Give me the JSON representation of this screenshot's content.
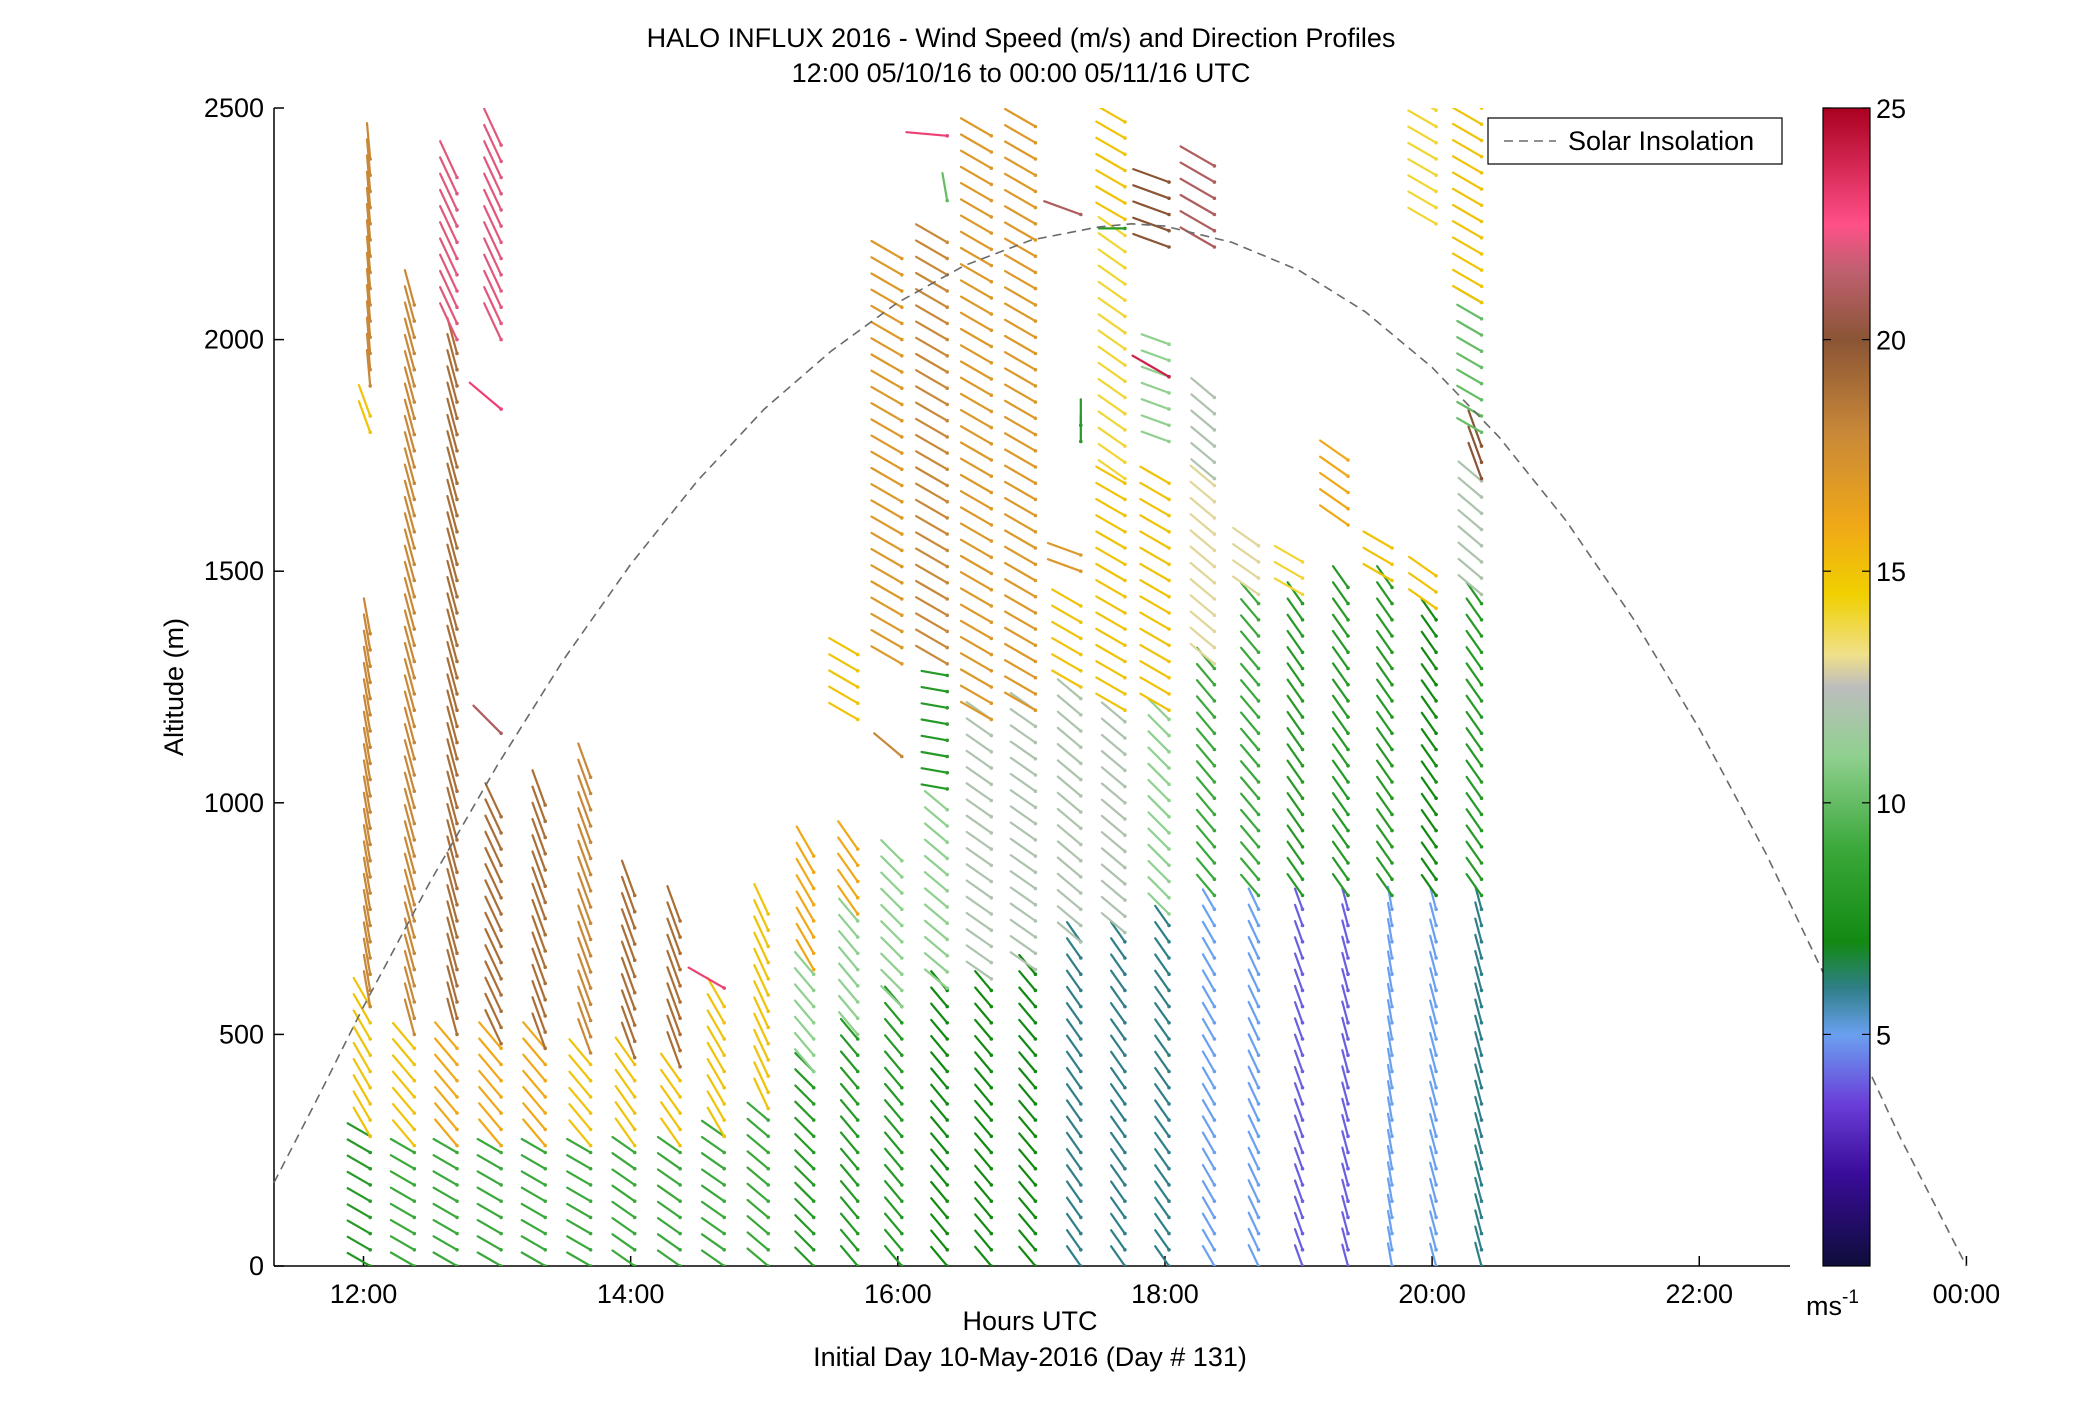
{
  "chart_data": {
    "type": "wind_barb_profile",
    "title": "HALO INFLUX 2016 - Wind Speed (m/s) and Direction Profiles",
    "subtitle": "12:00 05/10/16 to 00:00 05/11/16  UTC",
    "xlabel": "Hours UTC",
    "xlabel2": "Initial Day 10-May-2016 (Day # 131)",
    "ylabel": "Altitude (m)",
    "x_ticks": [
      "12:00",
      "14:00",
      "16:00",
      "18:00",
      "20:00",
      "22:00",
      "00:00"
    ],
    "x_tick_hours": [
      12,
      14,
      16,
      18,
      20,
      22,
      24
    ],
    "xlim_hours": [
      11.33,
      25.0
    ],
    "y_ticks": [
      0,
      500,
      1000,
      1500,
      2000,
      2500
    ],
    "ylim": [
      0,
      2500
    ],
    "legend": {
      "label": "Solar Insolation",
      "placement": "top-right"
    },
    "colorbar": {
      "ticks": [
        5,
        10,
        15,
        20,
        25
      ],
      "range": [
        0,
        25
      ],
      "unit_label": "ms",
      "unit_exponent": "-1"
    },
    "solar_insolation": {
      "style": "dashed",
      "color": "#6a6a6a",
      "points": [
        [
          11.33,
          180
        ],
        [
          11.67,
          370
        ],
        [
          12.0,
          560
        ],
        [
          12.5,
          830
        ],
        [
          13.0,
          1080
        ],
        [
          13.5,
          1310
        ],
        [
          14.0,
          1515
        ],
        [
          14.5,
          1695
        ],
        [
          15.0,
          1850
        ],
        [
          15.5,
          1975
        ],
        [
          16.0,
          2080
        ],
        [
          16.5,
          2160
        ],
        [
          17.0,
          2215
        ],
        [
          17.5,
          2243
        ],
        [
          17.75,
          2250
        ],
        [
          18.0,
          2245
        ],
        [
          18.5,
          2210
        ],
        [
          19.0,
          2150
        ],
        [
          19.5,
          2060
        ],
        [
          20.0,
          1940
        ],
        [
          20.5,
          1790
        ],
        [
          21.0,
          1610
        ],
        [
          21.5,
          1400
        ],
        [
          22.0,
          1160
        ],
        [
          22.5,
          890
        ],
        [
          23.0,
          590
        ],
        [
          23.5,
          280
        ],
        [
          24.0,
          0
        ]
      ]
    },
    "profiles": [
      {
        "time": 12.05,
        "segments": [
          {
            "from": 0,
            "to": 280,
            "speed": 8,
            "dir": 300
          },
          {
            "from": 280,
            "to": 560,
            "speed": 15,
            "dir": 330
          },
          {
            "from": 560,
            "to": 1380,
            "speed": 18,
            "dir": 350
          },
          {
            "from": 1800,
            "to": 1850,
            "speed": 15,
            "dir": 340
          },
          {
            "from": 1900,
            "to": 2420,
            "speed": 18,
            "dir": 355
          }
        ]
      },
      {
        "time": 12.38,
        "segments": [
          {
            "from": 0,
            "to": 260,
            "speed": 9,
            "dir": 300
          },
          {
            "from": 260,
            "to": 500,
            "speed": 15,
            "dir": 320
          },
          {
            "from": 500,
            "to": 2080,
            "speed": 18,
            "dir": 345
          }
        ]
      },
      {
        "time": 12.7,
        "segments": [
          {
            "from": 0,
            "to": 260,
            "speed": 9,
            "dir": 300
          },
          {
            "from": 260,
            "to": 500,
            "speed": 16,
            "dir": 320
          },
          {
            "from": 500,
            "to": 2000,
            "speed": 19,
            "dir": 345
          },
          {
            "from": 2000,
            "to": 2370,
            "speed": 22,
            "dir": 335
          }
        ]
      },
      {
        "time": 13.03,
        "segments": [
          {
            "from": 0,
            "to": 260,
            "speed": 9,
            "dir": 300
          },
          {
            "from": 260,
            "to": 480,
            "speed": 16,
            "dir": 320
          },
          {
            "from": 480,
            "to": 1000,
            "speed": 19,
            "dir": 335
          },
          {
            "from": 1150,
            "to": 1170,
            "speed": 21,
            "dir": 315
          },
          {
            "from": 1850,
            "to": 1870,
            "speed": 23,
            "dir": 310
          },
          {
            "from": 2000,
            "to": 2420,
            "speed": 22,
            "dir": 335
          }
        ]
      },
      {
        "time": 13.36,
        "segments": [
          {
            "from": 0,
            "to": 260,
            "speed": 9,
            "dir": 300
          },
          {
            "from": 260,
            "to": 470,
            "speed": 16,
            "dir": 320
          },
          {
            "from": 470,
            "to": 1000,
            "speed": 19,
            "dir": 340
          }
        ]
      },
      {
        "time": 13.7,
        "segments": [
          {
            "from": 0,
            "to": 260,
            "speed": 9,
            "dir": 300
          },
          {
            "from": 260,
            "to": 460,
            "speed": 15,
            "dir": 320
          },
          {
            "from": 460,
            "to": 1080,
            "speed": 18,
            "dir": 340
          }
        ]
      },
      {
        "time": 14.03,
        "segments": [
          {
            "from": 0,
            "to": 260,
            "speed": 9,
            "dir": 305
          },
          {
            "from": 260,
            "to": 450,
            "speed": 15,
            "dir": 325
          },
          {
            "from": 450,
            "to": 820,
            "speed": 19,
            "dir": 340
          }
        ]
      },
      {
        "time": 14.37,
        "segments": [
          {
            "from": 0,
            "to": 260,
            "speed": 9,
            "dir": 305
          },
          {
            "from": 260,
            "to": 430,
            "speed": 15,
            "dir": 325
          },
          {
            "from": 430,
            "to": 760,
            "speed": 19,
            "dir": 340
          }
        ]
      },
      {
        "time": 14.7,
        "segments": [
          {
            "from": 0,
            "to": 280,
            "speed": 9,
            "dir": 305
          },
          {
            "from": 280,
            "to": 560,
            "speed": 15,
            "dir": 330
          },
          {
            "from": 600,
            "to": 620,
            "speed": 23,
            "dir": 300
          }
        ]
      },
      {
        "time": 15.03,
        "segments": [
          {
            "from": 0,
            "to": 340,
            "speed": 9,
            "dir": 310
          },
          {
            "from": 340,
            "to": 760,
            "speed": 15,
            "dir": 335
          }
        ]
      },
      {
        "time": 15.37,
        "segments": [
          {
            "from": 0,
            "to": 420,
            "speed": 8,
            "dir": 315
          },
          {
            "from": 420,
            "to": 640,
            "speed": 11,
            "dir": 320
          },
          {
            "from": 640,
            "to": 900,
            "speed": 16,
            "dir": 330
          }
        ]
      },
      {
        "time": 15.7,
        "segments": [
          {
            "from": 0,
            "to": 500,
            "speed": 8,
            "dir": 320
          },
          {
            "from": 500,
            "to": 760,
            "speed": 11,
            "dir": 320
          },
          {
            "from": 760,
            "to": 900,
            "speed": 16,
            "dir": 325
          },
          {
            "from": 1180,
            "to": 1320,
            "speed": 15,
            "dir": 300
          }
        ]
      },
      {
        "time": 16.03,
        "segments": [
          {
            "from": 0,
            "to": 560,
            "speed": 8,
            "dir": 320
          },
          {
            "from": 560,
            "to": 880,
            "speed": 11,
            "dir": 315
          },
          {
            "from": 1100,
            "to": 1130,
            "speed": 18,
            "dir": 310
          },
          {
            "from": 1300,
            "to": 2200,
            "speed": 17,
            "dir": 300
          }
        ]
      },
      {
        "time": 16.37,
        "segments": [
          {
            "from": 0,
            "to": 600,
            "speed": 7,
            "dir": 320
          },
          {
            "from": 600,
            "to": 1000,
            "speed": 11,
            "dir": 310
          },
          {
            "from": 1030,
            "to": 1280,
            "speed": 8,
            "dir": 280
          },
          {
            "from": 1300,
            "to": 2220,
            "speed": 18,
            "dir": 300
          },
          {
            "from": 2300,
            "to": 2330,
            "speed": 10,
            "dir": 350
          },
          {
            "from": 2440,
            "to": 2460,
            "speed": 23,
            "dir": 275
          }
        ]
      },
      {
        "time": 16.7,
        "segments": [
          {
            "from": 0,
            "to": 620,
            "speed": 7,
            "dir": 320
          },
          {
            "from": 620,
            "to": 1180,
            "speed": 12,
            "dir": 305
          },
          {
            "from": 1180,
            "to": 2460,
            "speed": 17,
            "dir": 300
          }
        ]
      },
      {
        "time": 17.03,
        "segments": [
          {
            "from": 0,
            "to": 640,
            "speed": 7,
            "dir": 320
          },
          {
            "from": 640,
            "to": 1200,
            "speed": 12,
            "dir": 305
          },
          {
            "from": 1200,
            "to": 2460,
            "speed": 17,
            "dir": 300
          }
        ]
      },
      {
        "time": 17.37,
        "segments": [
          {
            "from": 0,
            "to": 700,
            "speed": 6,
            "dir": 325
          },
          {
            "from": 700,
            "to": 1250,
            "speed": 12,
            "dir": 310
          },
          {
            "from": 1250,
            "to": 1450,
            "speed": 15,
            "dir": 300
          },
          {
            "from": 1500,
            "to": 1540,
            "speed": 17,
            "dir": 290
          },
          {
            "from": 1780,
            "to": 1830,
            "speed": 8,
            "dir": 0
          },
          {
            "from": 2270,
            "to": 2300,
            "speed": 21,
            "dir": 290
          }
        ]
      },
      {
        "time": 17.7,
        "segments": [
          {
            "from": 0,
            "to": 720,
            "speed": 6,
            "dir": 325
          },
          {
            "from": 720,
            "to": 1200,
            "speed": 12,
            "dir": 310
          },
          {
            "from": 1200,
            "to": 1700,
            "speed": 15,
            "dir": 300
          },
          {
            "from": 1700,
            "to": 2230,
            "speed": 14,
            "dir": 305
          },
          {
            "from": 2240,
            "to": 2260,
            "speed": 8,
            "dir": 270
          },
          {
            "from": 2260,
            "to": 2500,
            "speed": 15,
            "dir": 300
          }
        ]
      },
      {
        "time": 18.03,
        "segments": [
          {
            "from": 0,
            "to": 760,
            "speed": 6,
            "dir": 325
          },
          {
            "from": 760,
            "to": 1200,
            "speed": 11,
            "dir": 315
          },
          {
            "from": 1200,
            "to": 1700,
            "speed": 15,
            "dir": 300
          },
          {
            "from": 1780,
            "to": 2000,
            "speed": 11,
            "dir": 290
          },
          {
            "from": 1920,
            "to": 1950,
            "speed": 24,
            "dir": 300
          },
          {
            "from": 2200,
            "to": 2340,
            "speed": 20,
            "dir": 290
          }
        ]
      },
      {
        "time": 18.37,
        "segments": [
          {
            "from": 0,
            "to": 800,
            "speed": 5,
            "dir": 330
          },
          {
            "from": 800,
            "to": 1300,
            "speed": 9,
            "dir": 320
          },
          {
            "from": 1300,
            "to": 1700,
            "speed": 13,
            "dir": 310
          },
          {
            "from": 1700,
            "to": 1880,
            "speed": 12,
            "dir": 310
          },
          {
            "from": 2200,
            "to": 2400,
            "speed": 21,
            "dir": 300
          }
        ]
      },
      {
        "time": 18.7,
        "segments": [
          {
            "from": 0,
            "to": 800,
            "speed": 5,
            "dir": 335
          },
          {
            "from": 800,
            "to": 1450,
            "speed": 9,
            "dir": 320
          },
          {
            "from": 1450,
            "to": 1580,
            "speed": 13,
            "dir": 305
          }
        ]
      },
      {
        "time": 19.03,
        "segments": [
          {
            "from": 0,
            "to": 800,
            "speed": 4,
            "dir": 340
          },
          {
            "from": 800,
            "to": 1450,
            "speed": 8,
            "dir": 325
          },
          {
            "from": 1450,
            "to": 1550,
            "speed": 14,
            "dir": 300
          }
        ]
      },
      {
        "time": 19.37,
        "segments": [
          {
            "from": 0,
            "to": 800,
            "speed": 4,
            "dir": 345
          },
          {
            "from": 800,
            "to": 1480,
            "speed": 8,
            "dir": 325
          },
          {
            "from": 1600,
            "to": 1750,
            "speed": 16,
            "dir": 305
          }
        ]
      },
      {
        "time": 19.7,
        "segments": [
          {
            "from": 0,
            "to": 800,
            "speed": 5,
            "dir": 350
          },
          {
            "from": 800,
            "to": 1480,
            "speed": 8,
            "dir": 325
          },
          {
            "from": 1480,
            "to": 1550,
            "speed": 15,
            "dir": 300
          }
        ]
      },
      {
        "time": 20.03,
        "segments": [
          {
            "from": 0,
            "to": 800,
            "speed": 5,
            "dir": 345
          },
          {
            "from": 800,
            "to": 1420,
            "speed": 7,
            "dir": 325
          },
          {
            "from": 1420,
            "to": 1500,
            "speed": 15,
            "dir": 305
          },
          {
            "from": 2250,
            "to": 2500,
            "speed": 14,
            "dir": 300
          }
        ]
      },
      {
        "time": 20.37,
        "segments": [
          {
            "from": 0,
            "to": 800,
            "speed": 6,
            "dir": 345
          },
          {
            "from": 800,
            "to": 1450,
            "speed": 8,
            "dir": 325
          },
          {
            "from": 1450,
            "to": 1700,
            "speed": 12,
            "dir": 310
          },
          {
            "from": 1700,
            "to": 1780,
            "speed": 20,
            "dir": 340
          },
          {
            "from": 1800,
            "to": 2080,
            "speed": 10,
            "dir": 300
          },
          {
            "from": 2080,
            "to": 2500,
            "speed": 15,
            "dir": 300
          }
        ]
      }
    ]
  }
}
